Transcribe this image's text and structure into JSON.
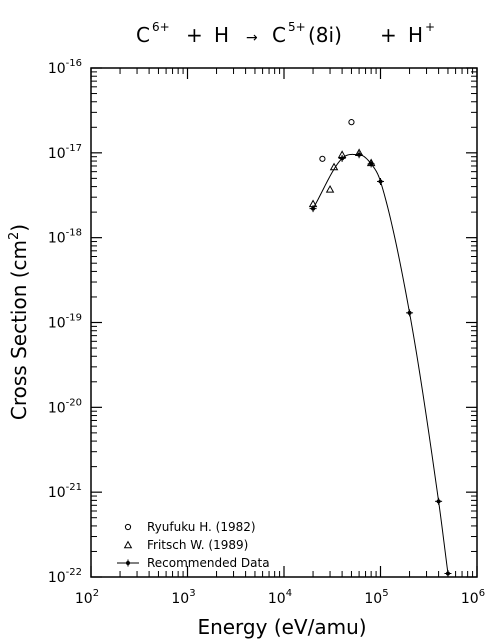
{
  "chart_data": {
    "type": "scatter",
    "title": {
      "c_base": "C",
      "c_charge": "6+",
      "plus1": "+",
      "h": "H",
      "arrow": "→",
      "c2_base": "C",
      "c2_charge": "5+",
      "state": "(8i)",
      "plus2": "+",
      "h2_base": "H",
      "h2_charge": "+"
    },
    "xlabel": "Energy (eV/amu)",
    "ylabel": {
      "prefix": "Cross Section (cm",
      "exponent": "2",
      "suffix": ")"
    },
    "x_scale": "log",
    "y_scale": "log",
    "xlim": [
      100,
      1000000
    ],
    "ylim": [
      1e-22,
      1e-16
    ],
    "x_ticks": [
      {
        "base": "10",
        "exp": "2",
        "value": 100
      },
      {
        "base": "10",
        "exp": "3",
        "value": 1000
      },
      {
        "base": "10",
        "exp": "4",
        "value": 10000
      },
      {
        "base": "10",
        "exp": "5",
        "value": 100000
      },
      {
        "base": "10",
        "exp": "6",
        "value": 1000000
      }
    ],
    "y_ticks": [
      {
        "base": "10",
        "exp": "-16",
        "value": 1e-16
      },
      {
        "base": "10",
        "exp": "-17",
        "value": 1e-17
      },
      {
        "base": "10",
        "exp": "-18",
        "value": 1e-18
      },
      {
        "base": "10",
        "exp": "-19",
        "value": 1e-19
      },
      {
        "base": "10",
        "exp": "-20",
        "value": 1e-20
      },
      {
        "base": "10",
        "exp": "-21",
        "value": 1e-21
      },
      {
        "base": "10",
        "exp": "-22",
        "value": 1e-22
      }
    ],
    "legend_position": "bottom-left",
    "series": [
      {
        "name": "Ryufuku H. (1982)",
        "marker": "circle",
        "points": [
          {
            "x": 25000,
            "y": 8.5e-18
          },
          {
            "x": 50000,
            "y": 2.3e-17
          }
        ]
      },
      {
        "name": "Fritsch W. (1989)",
        "marker": "triangle",
        "points": [
          {
            "x": 20000,
            "y": 2.5e-18
          },
          {
            "x": 30000,
            "y": 3.7e-18
          },
          {
            "x": 33000,
            "y": 6.8e-18
          },
          {
            "x": 40000,
            "y": 9.5e-18
          },
          {
            "x": 60000,
            "y": 1e-17
          },
          {
            "x": 80000,
            "y": 7.6e-18
          }
        ]
      },
      {
        "name": "Recommended Data",
        "marker": "star-line",
        "points": [
          {
            "x": 20000,
            "y": 2.2e-18
          },
          {
            "x": 40000,
            "y": 8.6e-18
          },
          {
            "x": 60000,
            "y": 9.5e-18
          },
          {
            "x": 80000,
            "y": 7.4e-18
          },
          {
            "x": 100000,
            "y": 4.6e-18
          },
          {
            "x": 200000,
            "y": 1.3e-19
          },
          {
            "x": 400000,
            "y": 7.8e-22
          },
          {
            "x": 500000,
            "y": 1.1e-22
          }
        ]
      }
    ]
  }
}
